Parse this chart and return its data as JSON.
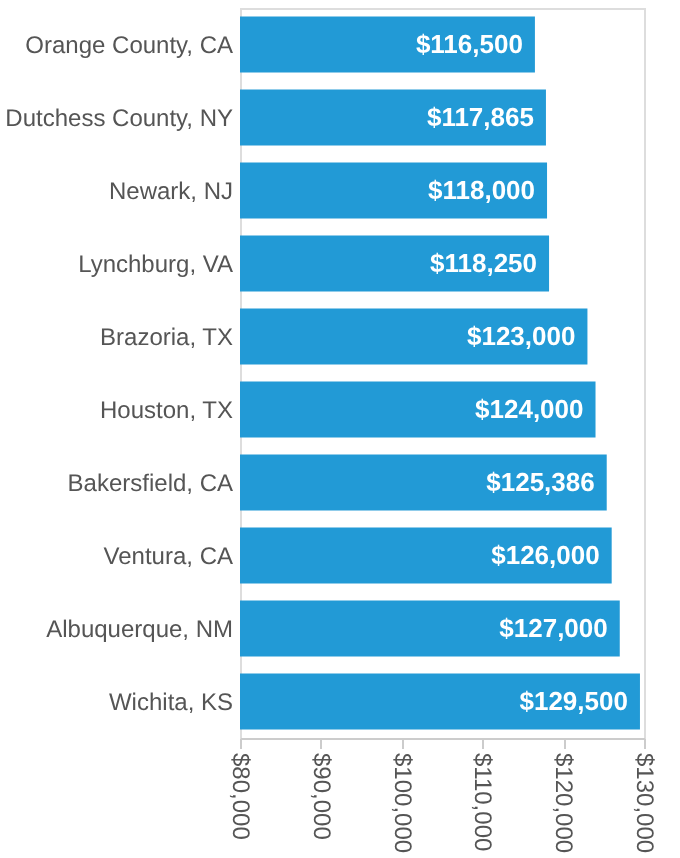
{
  "chart_data": {
    "type": "bar",
    "orientation": "horizontal",
    "categories": [
      "Orange County, CA",
      "Dutchess County, NY",
      "Newark, NJ",
      "Lynchburg, VA",
      "Brazoria, TX",
      "Houston, TX",
      "Bakersfield, CA",
      "Ventura, CA",
      "Albuquerque, NM",
      "Wichita, KS"
    ],
    "values": [
      116500,
      117865,
      118000,
      118250,
      123000,
      124000,
      125386,
      126000,
      127000,
      129500
    ],
    "value_labels": [
      "$116,500",
      "$117,865",
      "$118,000",
      "$118,250",
      "$123,000",
      "$124,000",
      "$125,386",
      "$126,000",
      "$127,000",
      "$129,500"
    ],
    "color": "#229ad6",
    "xlim": [
      80000,
      130000
    ],
    "xticks": [
      {
        "value": 80000,
        "label": "$80,000"
      },
      {
        "value": 90000,
        "label": "$90,000"
      },
      {
        "value": 100000,
        "label": "$100,000"
      },
      {
        "value": 110000,
        "label": "$110,000"
      },
      {
        "value": 120000,
        "label": "$120,000"
      },
      {
        "value": 130000,
        "label": "$130,000"
      }
    ],
    "grid": false
  }
}
